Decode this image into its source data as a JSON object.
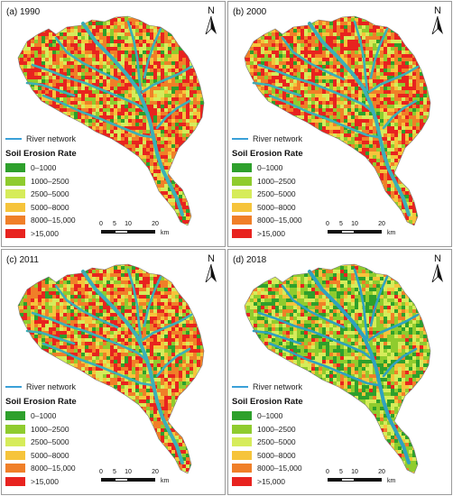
{
  "panels": [
    {
      "title": "(a) 1990"
    },
    {
      "title": "(b) 2000"
    },
    {
      "title": "(c) 2011"
    },
    {
      "title": "(d) 2018"
    }
  ],
  "north_label": "N",
  "legend": {
    "river_label": "River network",
    "river_color": "#3aa0d8",
    "title": "Soil Erosion Rate",
    "classes": [
      {
        "label": "0–1000",
        "color": "#2ea02c"
      },
      {
        "label": "1000–2500",
        "color": "#8fcc2e"
      },
      {
        "label": "2500–5000",
        "color": "#d6ec5a"
      },
      {
        "label": "5000–8000",
        "color": "#f6c43b"
      },
      {
        "label": "8000–15,000",
        "color": "#f07f28"
      },
      {
        "label": ">15,000",
        "color": "#e8231f"
      }
    ]
  },
  "scale": {
    "ticks": [
      "0",
      "5",
      "10",
      "20"
    ],
    "unit": "km"
  },
  "class_shares": [
    [
      0.06,
      0.1,
      0.14,
      0.16,
      0.24,
      0.3
    ],
    [
      0.07,
      0.11,
      0.13,
      0.15,
      0.24,
      0.3
    ],
    [
      0.08,
      0.12,
      0.15,
      0.16,
      0.23,
      0.26
    ],
    [
      0.2,
      0.3,
      0.22,
      0.12,
      0.1,
      0.06
    ]
  ]
}
